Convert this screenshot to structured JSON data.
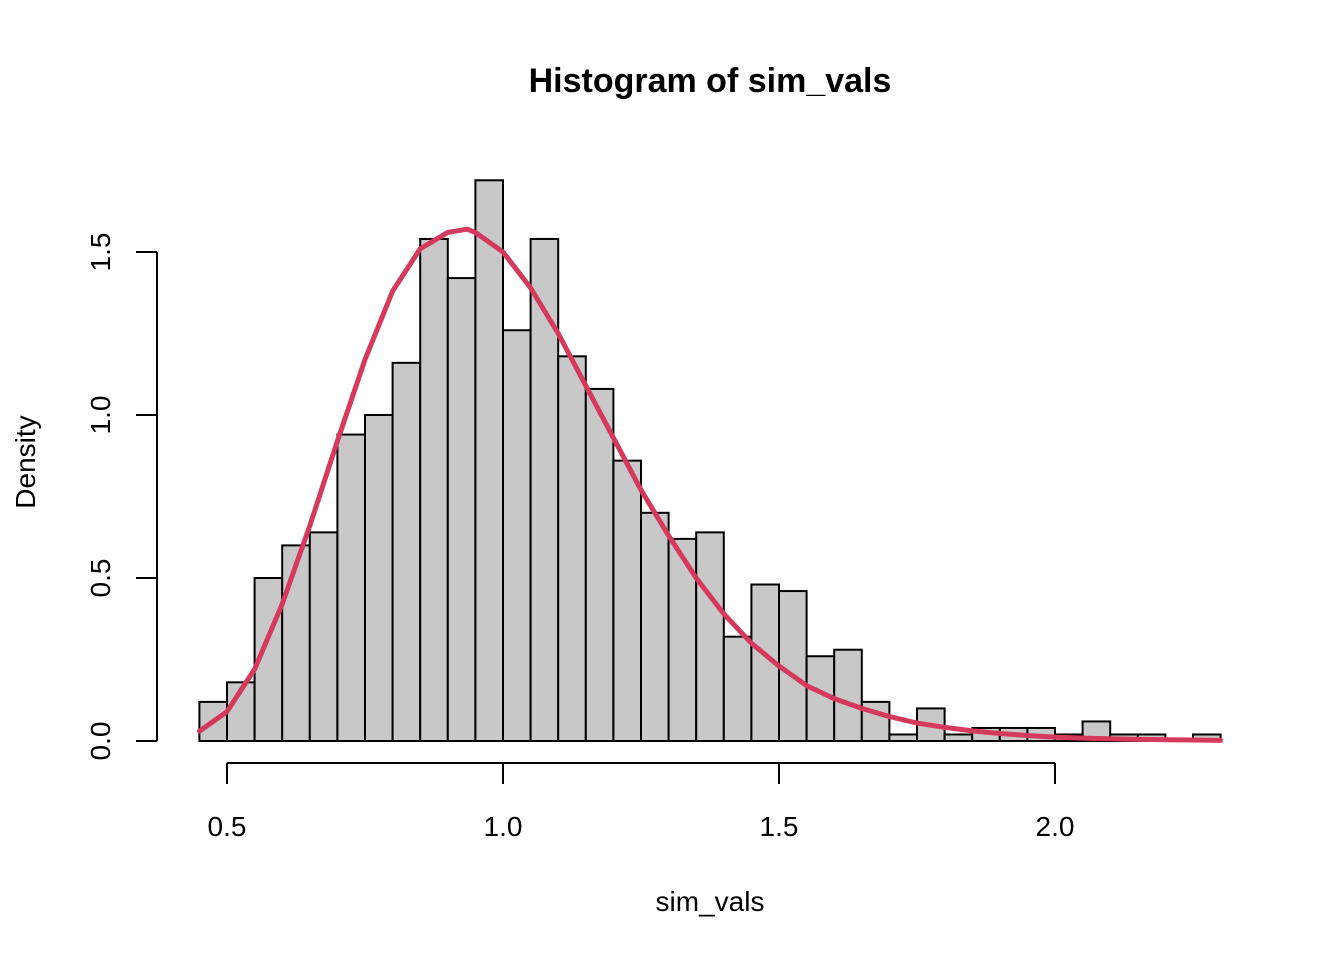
{
  "chart_data": {
    "type": "bar",
    "title": "Histogram of sim_vals",
    "xlabel": "sim_vals",
    "ylabel": "Density",
    "xlim": [
      0.45,
      2.3
    ],
    "ylim": [
      0,
      1.72
    ],
    "x_ticks": [
      0.5,
      1.0,
      1.5,
      2.0
    ],
    "x_tick_labels": [
      "0.5",
      "1.0",
      "1.5",
      "2.0"
    ],
    "y_ticks": [
      0.0,
      0.5,
      1.0,
      1.5
    ],
    "y_tick_labels": [
      "0.0",
      "0.5",
      "1.0",
      "1.5"
    ],
    "bin_width": 0.05,
    "bin_start": 0.45,
    "values": [
      0.12,
      0.18,
      0.5,
      0.6,
      0.64,
      0.94,
      1.0,
      1.16,
      1.54,
      1.42,
      1.72,
      1.26,
      1.54,
      1.18,
      1.08,
      0.86,
      0.7,
      0.62,
      0.64,
      0.32,
      0.48,
      0.46,
      0.26,
      0.28,
      0.12,
      0.02,
      0.1,
      0.02,
      0.04,
      0.04,
      0.04,
      0.02,
      0.06,
      0.02,
      0.02,
      0.0,
      0.02
    ],
    "curve": {
      "x": [
        0.45,
        0.5,
        0.55,
        0.6,
        0.65,
        0.7,
        0.75,
        0.8,
        0.85,
        0.9,
        0.935,
        0.95,
        1.0,
        1.05,
        1.1,
        1.15,
        1.2,
        1.25,
        1.3,
        1.35,
        1.4,
        1.45,
        1.5,
        1.55,
        1.6,
        1.65,
        1.7,
        1.75,
        1.8,
        1.85,
        1.9,
        1.95,
        2.0,
        2.05,
        2.1,
        2.15,
        2.2,
        2.25,
        2.3
      ],
      "y": [
        0.03,
        0.09,
        0.22,
        0.42,
        0.66,
        0.92,
        1.17,
        1.38,
        1.51,
        1.56,
        1.57,
        1.56,
        1.5,
        1.39,
        1.25,
        1.09,
        0.93,
        0.77,
        0.63,
        0.5,
        0.39,
        0.3,
        0.23,
        0.17,
        0.13,
        0.1,
        0.075,
        0.055,
        0.042,
        0.031,
        0.023,
        0.017,
        0.012,
        0.009,
        0.007,
        0.005,
        0.004,
        0.003,
        0.002
      ]
    },
    "colors": {
      "bar_fill": "#c8c8c8",
      "bar_stroke": "#000000",
      "curve": "#d53a5d",
      "axis": "#000000"
    },
    "grid": false
  }
}
